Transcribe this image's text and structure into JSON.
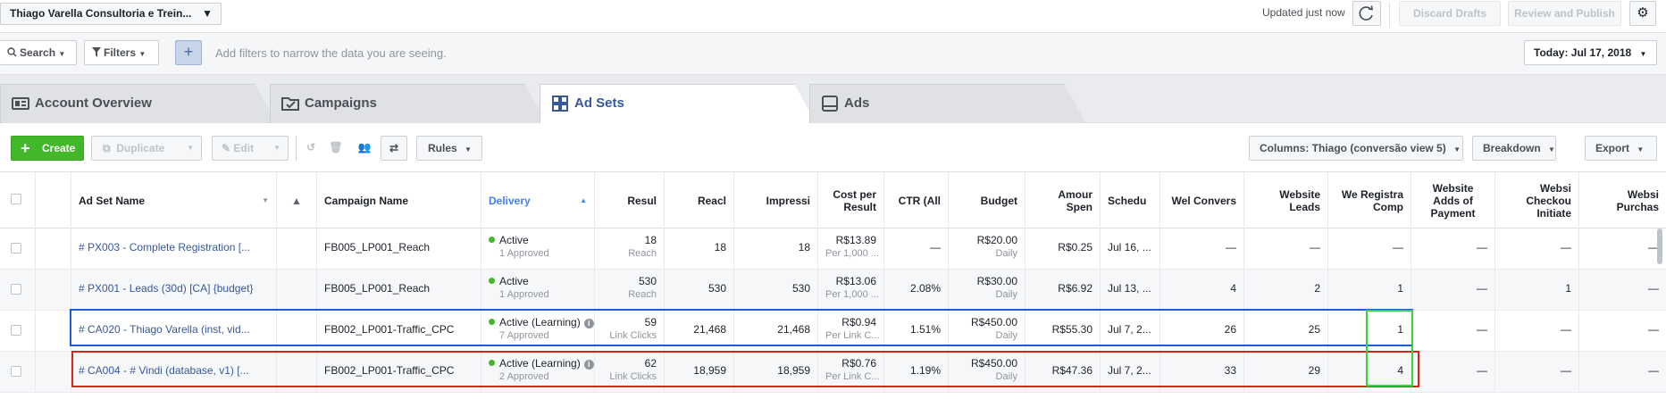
{
  "topbar": {
    "account_name": "Thiago Varella Consultoria e Trein...",
    "updated": "Updated just now",
    "discard": "Discard Drafts",
    "review": "Review and Publish"
  },
  "filterbar": {
    "search": "Search",
    "filters": "Filters",
    "hint": "Add filters to narrow the data you are seeing.",
    "date": "Today: Jul 17, 2018"
  },
  "tabs": [
    {
      "label": "Account Overview"
    },
    {
      "label": "Campaigns"
    },
    {
      "label": "Ad Sets"
    },
    {
      "label": "Ads"
    }
  ],
  "toolbar": {
    "create": "Create",
    "duplicate": "Duplicate",
    "edit": "Edit",
    "rules": "Rules",
    "columns": "Columns: Thiago (conversão view 5)",
    "breakdown": "Breakdown",
    "export": "Export"
  },
  "columns": {
    "name": "Ad Set Name",
    "campaign": "Campaign Name",
    "delivery": "Delivery",
    "results": "Resul",
    "reach": "Reacl",
    "impressions": "Impressi",
    "cost": "Cost per Result",
    "ctr": "CTR (All",
    "budget": "Budget",
    "spent": "Amour Spen",
    "schedule": "Schedu",
    "web_conv": "Wel Convers",
    "leads": "Website Leads",
    "reg": "We Registra Comp",
    "payment": "Website Adds of Payment",
    "checkout": "Websi Checkou Initiate",
    "purchase": "Websi Purchas"
  },
  "rows": [
    {
      "name": "# PX003 - Complete Registration [...",
      "campaign": "FB005_LP001_Reach",
      "status": "Active",
      "approved": "1 Approved",
      "results": "18",
      "results_type": "Reach",
      "reach": "18",
      "impressions": "18",
      "cost": "R$13.89",
      "cost_sub": "Per 1,000 ...",
      "ctr": "—",
      "budget": "R$20.00",
      "budget_sub": "Daily",
      "spent": "R$0.25",
      "schedule": "Jul 16, ...",
      "web_conv": "—",
      "leads": "—",
      "reg": "—",
      "payment": "—",
      "checkout": "—",
      "purchase": "—"
    },
    {
      "name": "# PX001 - Leads (30d) [CA] {budget}",
      "campaign": "FB005_LP001_Reach",
      "status": "Active",
      "approved": "1 Approved",
      "results": "530",
      "results_type": "Reach",
      "reach": "530",
      "impressions": "530",
      "cost": "R$13.06",
      "cost_sub": "Per 1,000 ...",
      "ctr": "2.08%",
      "budget": "R$30.00",
      "budget_sub": "Daily",
      "spent": "R$6.92",
      "schedule": "Jul 13, ...",
      "web_conv": "4",
      "leads": "2",
      "reg": "1",
      "payment": "—",
      "checkout": "1",
      "purchase": "—"
    },
    {
      "name": "# CA020 - Thiago Varella (inst, vid...",
      "campaign": "FB002_LP001-Traffic_CPC",
      "status": "Active (Learning)",
      "approved": "7 Approved",
      "results": "59",
      "results_type": "Link Clicks",
      "reach": "21,468",
      "impressions": "21,468",
      "cost": "R$0.94",
      "cost_sub": "Per Link C...",
      "ctr": "1.51%",
      "budget": "R$450.00",
      "budget_sub": "Daily",
      "spent": "R$55.30",
      "schedule": "Jul 7, 2...",
      "web_conv": "26",
      "leads": "25",
      "reg": "1",
      "payment": "—",
      "checkout": "—",
      "purchase": "—"
    },
    {
      "name": "# CA004 - # Vindi (database, v1) [...",
      "campaign": "FB002_LP001-Traffic_CPC",
      "status": "Active (Learning)",
      "approved": "2 Approved",
      "results": "62",
      "results_type": "Link Clicks",
      "reach": "18,959",
      "impressions": "18,959",
      "cost": "R$0.76",
      "cost_sub": "Per Link C...",
      "ctr": "1.19%",
      "budget": "R$450.00",
      "budget_sub": "Daily",
      "spent": "R$47.36",
      "schedule": "Jul 7, 2...",
      "web_conv": "33",
      "leads": "29",
      "reg": "4",
      "payment": "—",
      "checkout": "—",
      "purchase": "—"
    }
  ],
  "colors": {
    "blue_highlight": "#1a5ed8",
    "red_highlight": "#d0261b",
    "green_highlight": "#3dd03d",
    "link": "#365899",
    "create": "#42b72a"
  }
}
